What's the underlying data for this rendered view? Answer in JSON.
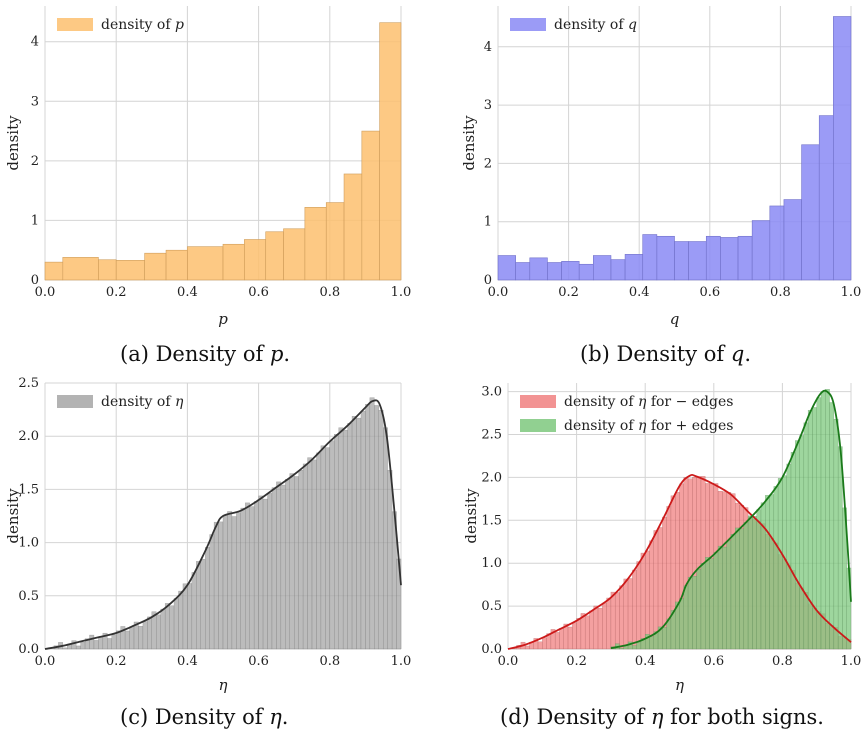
{
  "captions": [
    {
      "prefix": "(a) Density of ",
      "var": "p",
      "suffix": "."
    },
    {
      "prefix": "(b) Density of ",
      "var": "q",
      "suffix": "."
    },
    {
      "prefix": "(c) Density of ",
      "var": "η",
      "suffix": "."
    },
    {
      "prefix": "(d) Density of ",
      "var": "η",
      "suffix": " for both signs."
    }
  ],
  "chart_data": [
    {
      "type": "bar",
      "xlabel": "p",
      "ylabel": "density",
      "xlim": [
        0,
        1
      ],
      "ylim": [
        0,
        4.6
      ],
      "xticks": [
        "0.0",
        "0.2",
        "0.4",
        "0.6",
        "0.8",
        "1.0"
      ],
      "yticks": [
        "0",
        "1",
        "2",
        "3",
        "4"
      ],
      "grid": true,
      "legend_position": "top-left",
      "series": [
        {
          "name": "density of p",
          "legend_prefix": "density of ",
          "legend_var": "p",
          "color": "#fdbf6f",
          "bin_edges": [
            0,
            0.05,
            0.15,
            0.2,
            0.28,
            0.34,
            0.4,
            0.5,
            0.56,
            0.62,
            0.67,
            0.73,
            0.79,
            0.84,
            0.89,
            0.94,
            1.0
          ],
          "values": [
            0.3,
            0.38,
            0.34,
            0.33,
            0.45,
            0.5,
            0.56,
            0.6,
            0.68,
            0.81,
            0.86,
            1.22,
            1.3,
            1.78,
            2.5,
            4.32
          ]
        }
      ]
    },
    {
      "type": "bar",
      "xlabel": "q",
      "ylabel": "density",
      "xlim": [
        0,
        1
      ],
      "ylim": [
        0,
        4.7
      ],
      "xticks": [
        "0.0",
        "0.2",
        "0.4",
        "0.6",
        "0.8",
        "1.0"
      ],
      "yticks": [
        "0",
        "1",
        "2",
        "3",
        "4"
      ],
      "grid": true,
      "legend_position": "top-left",
      "series": [
        {
          "name": "density of q",
          "legend_prefix": "density of ",
          "legend_var": "q",
          "color": "#8a8af5",
          "bin_edges": [
            0,
            0.05,
            0.09,
            0.14,
            0.18,
            0.23,
            0.27,
            0.32,
            0.36,
            0.41,
            0.45,
            0.5,
            0.54,
            0.59,
            0.63,
            0.68,
            0.72,
            0.77,
            0.81,
            0.86,
            0.91,
            0.95,
            1.0
          ],
          "values": [
            0.42,
            0.3,
            0.38,
            0.3,
            0.32,
            0.27,
            0.42,
            0.35,
            0.44,
            0.78,
            0.75,
            0.66,
            0.66,
            0.75,
            0.73,
            0.75,
            1.02,
            1.27,
            1.38,
            2.32,
            2.82,
            4.52
          ]
        }
      ]
    },
    {
      "type": "bar",
      "xlabel": "η",
      "ylabel": "density",
      "xlim": [
        0,
        1
      ],
      "ylim": [
        0,
        2.5
      ],
      "xticks": [
        "0.0",
        "0.2",
        "0.4",
        "0.6",
        "0.8",
        "1.0"
      ],
      "yticks": [
        "0.0",
        "0.5",
        "1.0",
        "1.5",
        "2.0",
        "2.5"
      ],
      "grid": true,
      "legend_position": "top-left",
      "series": [
        {
          "name": "density of η",
          "legend_prefix": "density of ",
          "legend_var": "η",
          "color": "#a6a6a6",
          "line_color": "#333333",
          "kde_x": [
            0,
            0.05,
            0.1,
            0.15,
            0.2,
            0.25,
            0.3,
            0.35,
            0.4,
            0.45,
            0.48,
            0.5,
            0.55,
            0.6,
            0.65,
            0.7,
            0.75,
            0.8,
            0.85,
            0.9,
            0.92,
            0.94,
            0.96,
            0.98,
            1.0
          ],
          "kde_y": [
            0.0,
            0.03,
            0.07,
            0.11,
            0.15,
            0.22,
            0.3,
            0.42,
            0.6,
            0.92,
            1.15,
            1.25,
            1.3,
            1.4,
            1.52,
            1.64,
            1.78,
            1.95,
            2.1,
            2.27,
            2.33,
            2.3,
            2.0,
            1.35,
            0.6
          ]
        }
      ]
    },
    {
      "type": "bar",
      "xlabel": "η",
      "ylabel": "density",
      "xlim": [
        0,
        1
      ],
      "ylim": [
        0,
        3.1
      ],
      "xticks": [
        "0.0",
        "0.2",
        "0.4",
        "0.6",
        "0.8",
        "1.0"
      ],
      "yticks": [
        "0.0",
        "0.5",
        "1.0",
        "1.5",
        "2.0",
        "2.5",
        "3.0"
      ],
      "grid": true,
      "legend_position": "top-left",
      "series": [
        {
          "name": "density of η for − edges",
          "legend_prefix": "density of ",
          "legend_var": "η",
          "legend_suffix": " for − edges",
          "color": "#f08080",
          "line_color": "#cc1a1a",
          "kde_x": [
            0,
            0.05,
            0.1,
            0.15,
            0.2,
            0.25,
            0.3,
            0.35,
            0.4,
            0.45,
            0.5,
            0.53,
            0.55,
            0.6,
            0.65,
            0.7,
            0.75,
            0.8,
            0.85,
            0.9,
            0.95,
            1.0
          ],
          "kde_y": [
            0.0,
            0.05,
            0.13,
            0.23,
            0.33,
            0.46,
            0.6,
            0.82,
            1.12,
            1.5,
            1.9,
            2.02,
            2.01,
            1.92,
            1.8,
            1.6,
            1.4,
            1.1,
            0.75,
            0.45,
            0.25,
            0.08
          ]
        },
        {
          "name": "density of η for + edges",
          "legend_prefix": "density of ",
          "legend_var": "η",
          "legend_suffix": " for + edges",
          "color": "#7ec87e",
          "line_color": "#1a7a1a",
          "kde_x": [
            0.3,
            0.35,
            0.4,
            0.45,
            0.5,
            0.52,
            0.55,
            0.6,
            0.65,
            0.7,
            0.75,
            0.8,
            0.85,
            0.88,
            0.91,
            0.93,
            0.95,
            0.97,
            0.99,
            1.0
          ],
          "kde_y": [
            0.01,
            0.05,
            0.12,
            0.25,
            0.55,
            0.75,
            0.92,
            1.1,
            1.3,
            1.5,
            1.72,
            2.0,
            2.45,
            2.75,
            2.97,
            3.0,
            2.85,
            2.3,
            1.2,
            0.55
          ]
        }
      ]
    }
  ]
}
